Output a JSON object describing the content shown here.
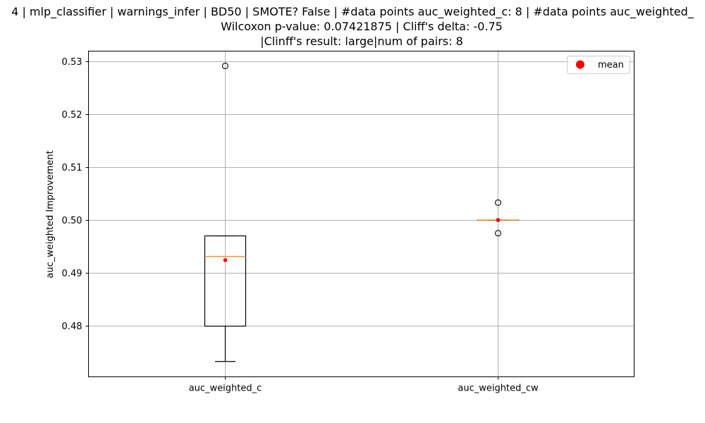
{
  "chart_data": {
    "type": "box",
    "title_lines": [
      "4 | mlp_classifier | warnings_infer | BD50 | SMOTE? False | #data points auc_weighted_c: 8 | #data points auc_weighted_",
      "Wilcoxon p-value: 0.07421875 | Cliff's delta: -0.75",
      "|Clinff's result: large|num of pairs: 8"
    ],
    "xlabel": "",
    "ylabel": "auc_weighted Improvement",
    "ylim": [
      0.4703,
      0.532
    ],
    "yticks": [
      0.48,
      0.49,
      0.5,
      0.51,
      0.52,
      0.53
    ],
    "ytick_labels": [
      "0.48",
      "0.49",
      "0.50",
      "0.51",
      "0.52",
      "0.53"
    ],
    "categories": [
      "auc_weighted_c",
      "auc_weighted_cw"
    ],
    "grid": true,
    "legend": {
      "position": "top-right",
      "entries": [
        "mean"
      ]
    },
    "colors": {
      "box": "#000000",
      "median": "#ff7f0e",
      "mean": "#ff0000",
      "grid": "#b0b0b0"
    },
    "boxes": [
      {
        "name": "auc_weighted_c",
        "whisker_low": 0.4732,
        "q1": 0.4799,
        "median": 0.4931,
        "q3": 0.497,
        "whisker_high": 0.497,
        "mean": 0.4924,
        "outliers": [
          0.5292
        ]
      },
      {
        "name": "auc_weighted_cw",
        "whisker_low": 0.5,
        "q1": 0.5,
        "median": 0.5,
        "q3": 0.5,
        "whisker_high": 0.5,
        "mean": 0.5,
        "outliers": [
          0.5033,
          0.4975
        ]
      }
    ]
  }
}
